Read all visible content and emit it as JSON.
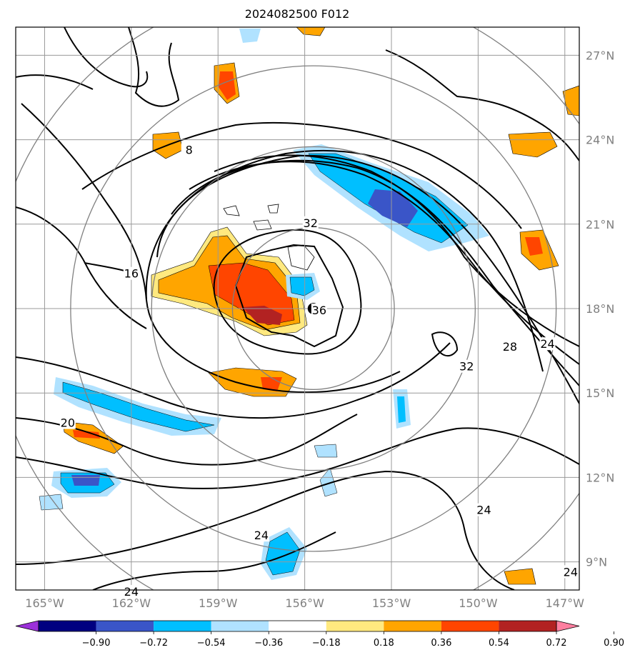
{
  "title": "2024082500 F012",
  "map": {
    "lon_range": [
      -166,
      -146.5
    ],
    "lat_range": [
      8,
      28
    ],
    "lon_ticks": [
      {
        "value": -165,
        "label": "165°W"
      },
      {
        "value": -162,
        "label": "162°W"
      },
      {
        "value": -159,
        "label": "159°W"
      },
      {
        "value": -156,
        "label": "156°W"
      },
      {
        "value": -153,
        "label": "153°W"
      },
      {
        "value": -150,
        "label": "150°W"
      },
      {
        "value": -147,
        "label": "147°W"
      }
    ],
    "lat_ticks": [
      {
        "value": 9,
        "label": "9°N"
      },
      {
        "value": 12,
        "label": "12°N"
      },
      {
        "value": 15,
        "label": "15°N"
      },
      {
        "value": 18,
        "label": "18°N"
      },
      {
        "value": 21,
        "label": "21°N"
      },
      {
        "value": 24,
        "label": "24°N"
      },
      {
        "value": 27,
        "label": "27°N"
      }
    ],
    "storm_center": {
      "lon": -155.7,
      "lat": 18.0
    },
    "range_ring_radii_deg": [
      2.8,
      5.6,
      8.4,
      11.2
    ],
    "contour_labels": [
      {
        "text": "32",
        "lon": -155.8,
        "lat": 21.0
      },
      {
        "text": "36",
        "lon": -155.5,
        "lat": 17.9
      },
      {
        "text": "32",
        "lon": -150.4,
        "lat": 15.9
      },
      {
        "text": "28",
        "lon": -148.9,
        "lat": 16.6
      },
      {
        "text": "24",
        "lon": -147.6,
        "lat": 16.7
      },
      {
        "text": "16",
        "lon": -162.0,
        "lat": 19.2
      },
      {
        "text": "8",
        "lon": -160.0,
        "lat": 23.6
      },
      {
        "text": "20",
        "lon": -164.2,
        "lat": 13.9
      },
      {
        "text": "24",
        "lon": -157.5,
        "lat": 9.9
      },
      {
        "text": "24",
        "lon": -149.8,
        "lat": 10.8
      },
      {
        "text": "24",
        "lon": -162.0,
        "lat": 7.9
      },
      {
        "text": "24",
        "lon": -146.8,
        "lat": 8.6
      }
    ]
  },
  "colorbar": {
    "labels": [
      "−0.90",
      "−0.72",
      "−0.54",
      "−0.36",
      "−0.18",
      "0.18",
      "0.36",
      "0.54",
      "0.72",
      "0.90"
    ],
    "colors": [
      "#9b30d9",
      "#000080",
      "#3a55c8",
      "#00bfff",
      "#b0e2ff",
      "#ffffff",
      "#ffe97f",
      "#ffa500",
      "#ff4500",
      "#b22222",
      "#ff7fa0"
    ]
  }
}
